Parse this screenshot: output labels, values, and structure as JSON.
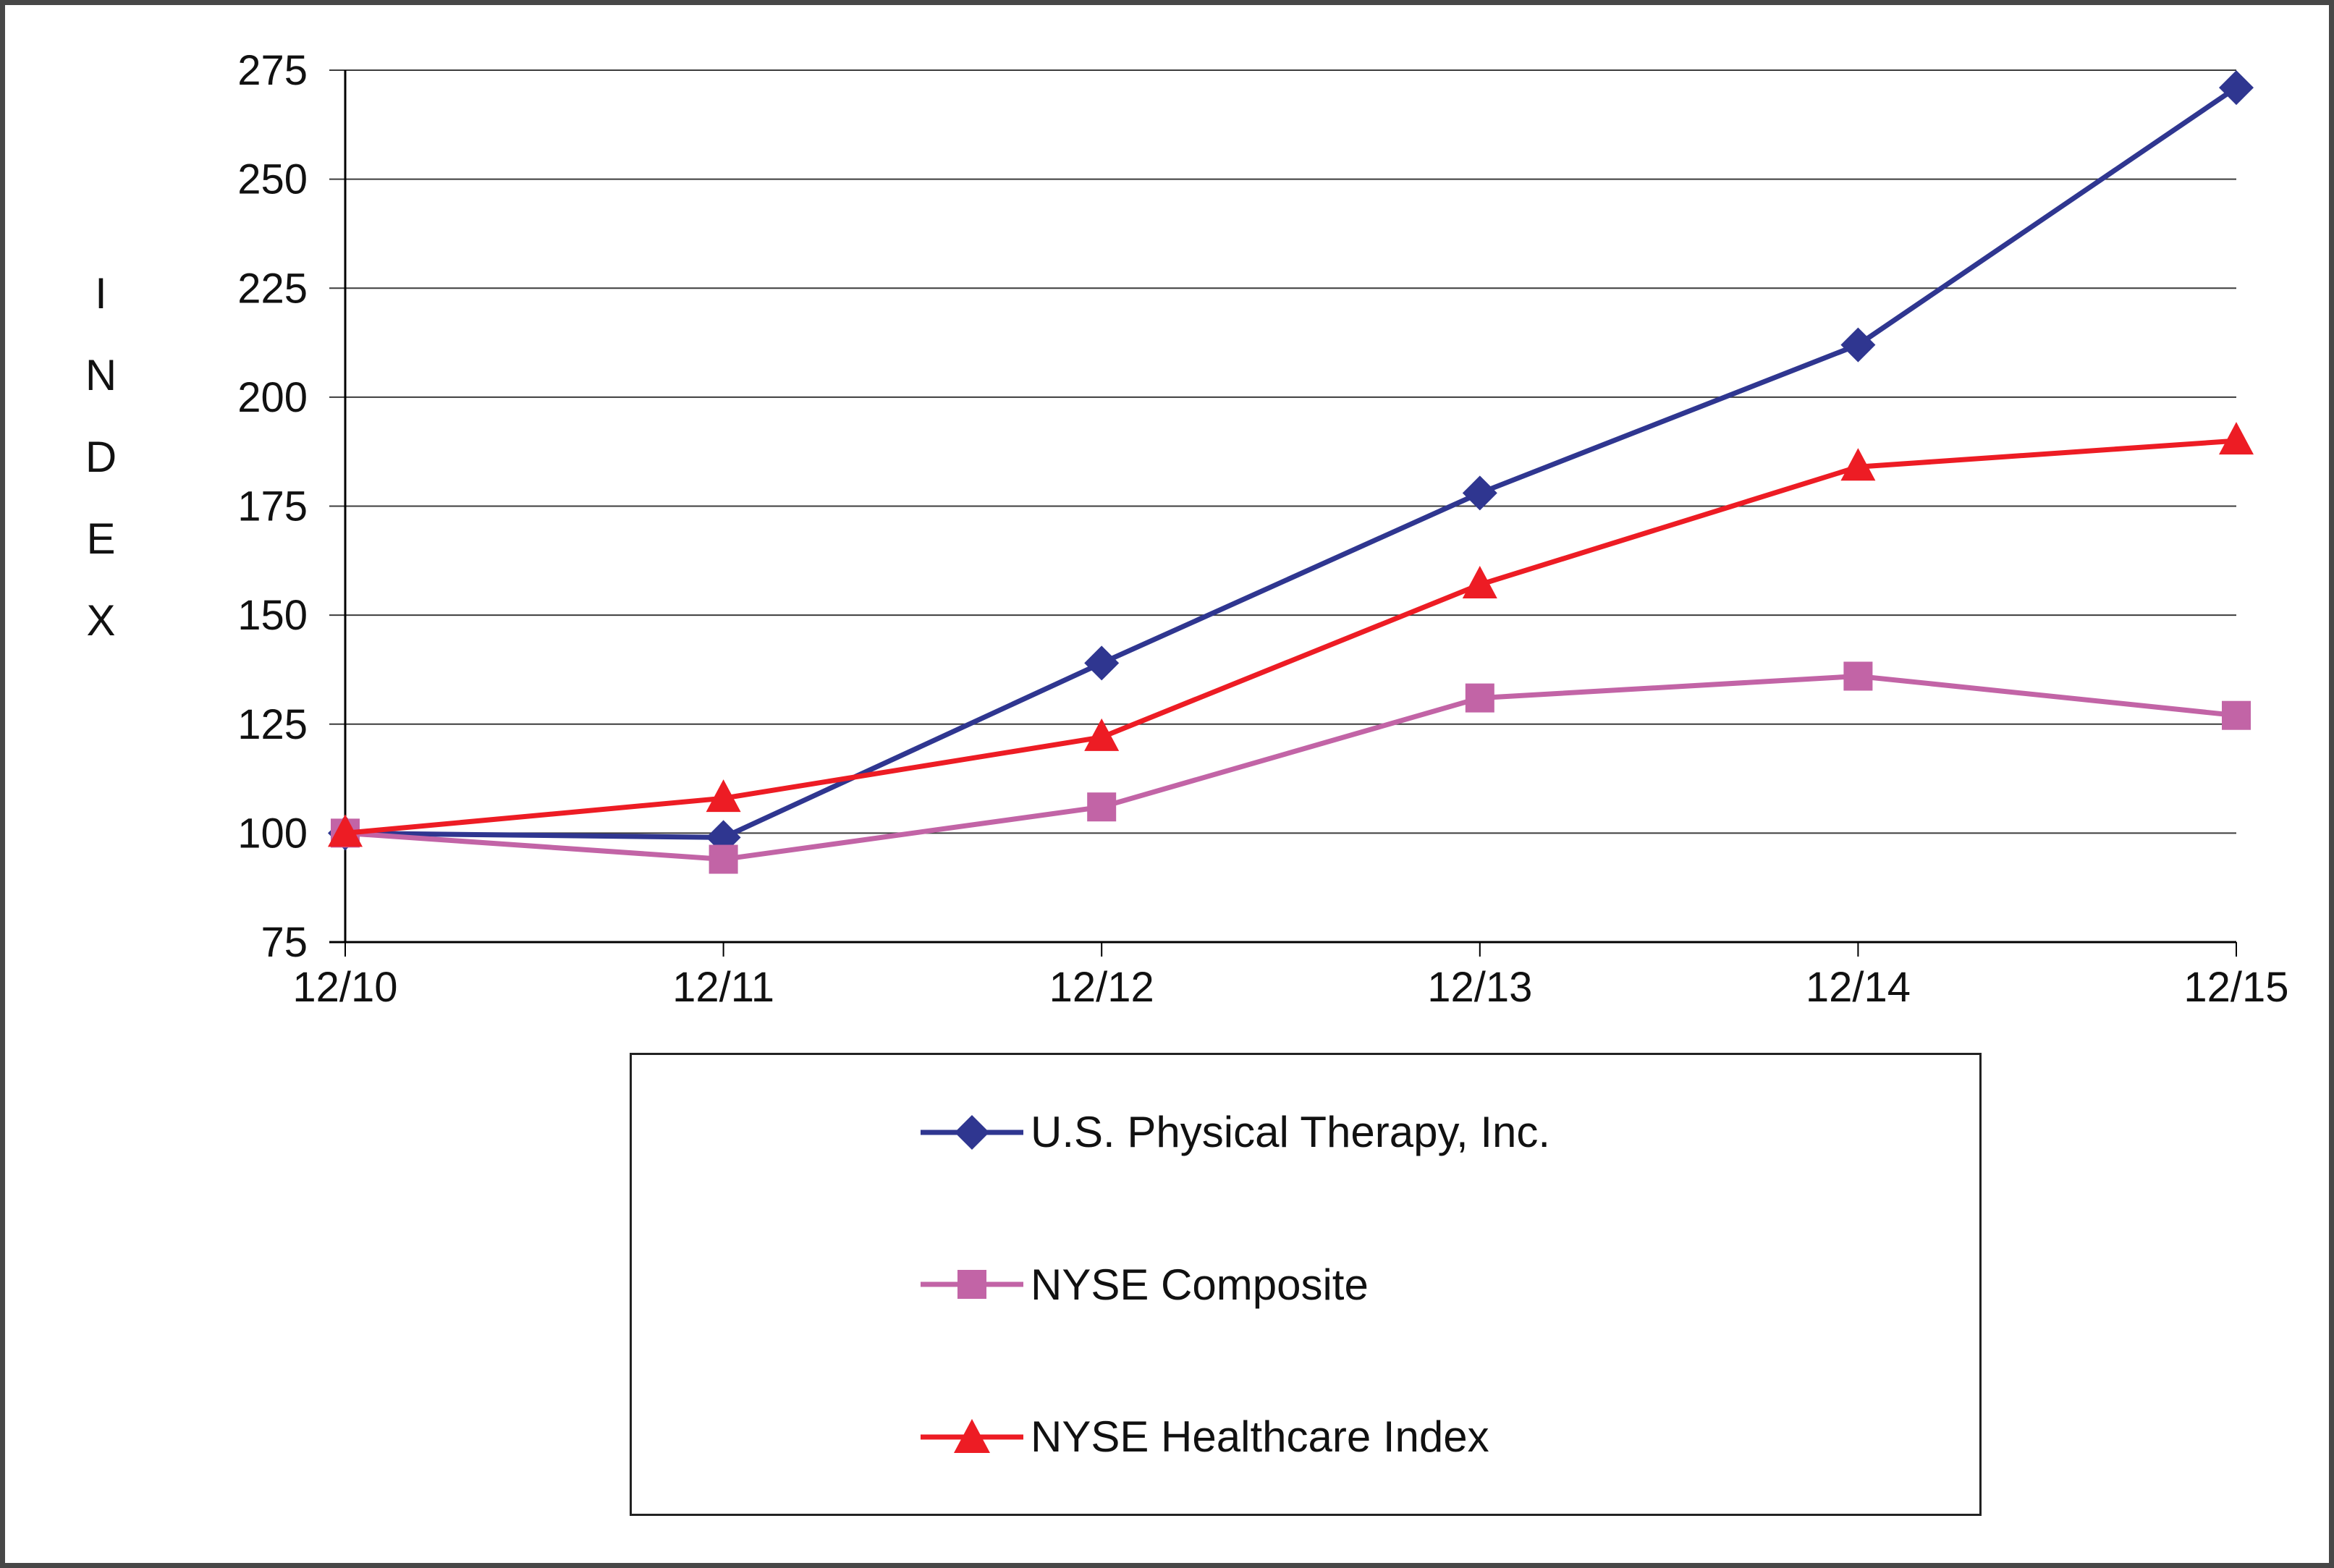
{
  "chart_data": {
    "type": "line",
    "title": "",
    "xlabel": "",
    "ylabel": "INDEX",
    "x": [
      "12/10",
      "12/11",
      "12/12",
      "12/13",
      "12/14",
      "12/15"
    ],
    "series": [
      {
        "name": "U.S. Physical Therapy, Inc.",
        "values": [
          100,
          99,
          139,
          178,
          212,
          271
        ],
        "color": "#2F3690",
        "marker": "diamond"
      },
      {
        "name": "NYSE Composite",
        "values": [
          100,
          94,
          106,
          131,
          136,
          127
        ],
        "color": "#C264A6",
        "marker": "square"
      },
      {
        "name": "NYSE Healthcare Index",
        "values": [
          100,
          108,
          122,
          157,
          184,
          190
        ],
        "color": "#ED1C24",
        "marker": "triangle"
      }
    ],
    "ylim": [
      75,
      275
    ],
    "yticks": [
      75,
      100,
      125,
      150,
      175,
      200,
      225,
      250,
      275
    ],
    "grid": true,
    "legend_position": "bottom",
    "axis_color": "#000000",
    "grid_color": "#3c3c3c"
  }
}
